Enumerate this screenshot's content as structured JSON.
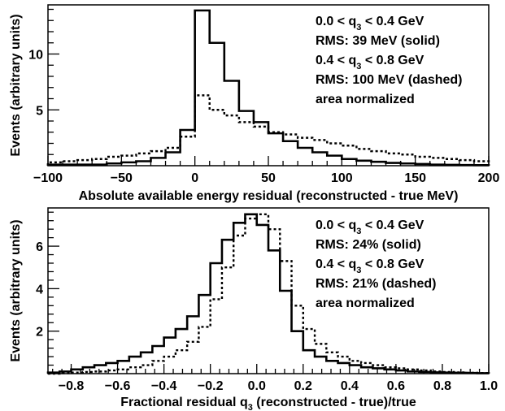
{
  "chart_data": [
    {
      "type": "histogram",
      "xlabel": "Absolute available energy residual (reconstructed - true MeV)",
      "ylabel": "Events (arbitrary units)",
      "xlim": [
        -100,
        200
      ],
      "ylim": [
        0,
        14.4
      ],
      "xticks": [
        "−100",
        "−50",
        "0",
        "50",
        "100",
        "150",
        "200"
      ],
      "xtick_values": [
        -100,
        -50,
        0,
        50,
        100,
        150,
        200
      ],
      "yticks": [
        "5",
        "10"
      ],
      "ytick_values": [
        5,
        10
      ],
      "bin_edges": [
        -100,
        -90,
        -80,
        -70,
        -60,
        -50,
        -40,
        -30,
        -20,
        -10,
        0,
        10,
        20,
        30,
        40,
        50,
        60,
        70,
        80,
        90,
        100,
        110,
        120,
        130,
        140,
        150,
        160,
        170,
        180,
        190,
        200
      ],
      "series": [
        {
          "style": "solid",
          "values": [
            0.1,
            0.1,
            0.1,
            0.1,
            0.2,
            0.3,
            0.4,
            0.7,
            1.2,
            3.2,
            13.9,
            11.0,
            7.6,
            4.9,
            3.9,
            2.9,
            2.2,
            1.6,
            1.2,
            0.9,
            0.6,
            0.45,
            0.35,
            0.25,
            0.2,
            0.15,
            0.1,
            0.08,
            0.06,
            0.05
          ]
        },
        {
          "style": "dashed",
          "values": [
            0.3,
            0.4,
            0.5,
            0.6,
            0.8,
            0.9,
            1.1,
            1.3,
            1.6,
            2.6,
            6.3,
            5.0,
            4.5,
            3.9,
            3.5,
            3.0,
            2.8,
            2.5,
            2.3,
            2.0,
            1.8,
            1.5,
            1.3,
            1.1,
            1.0,
            0.8,
            0.7,
            0.6,
            0.5,
            0.4
          ]
        }
      ],
      "legend": [
        {
          "pre": "0.0 < q",
          "sub": "3",
          "post": " < 0.4 GeV"
        },
        {
          "text": "RMS: 39 MeV (solid)"
        },
        {
          "pre": "0.4 < q",
          "sub": "3",
          "post": " < 0.8 GeV"
        },
        {
          "text": "RMS: 100 MeV (dashed)"
        },
        {
          "text": "area normalized"
        }
      ],
      "legend_placement": "top-right"
    },
    {
      "type": "histogram",
      "xlabel_pre": "Fractional residual q",
      "xlabel_sub": "3",
      "xlabel_post": " (reconstructed - true)/true",
      "ylabel": "Events (arbitrary units)",
      "xlim": [
        -0.9,
        1.0
      ],
      "ylim": [
        0,
        7.8
      ],
      "xticks": [
        "−0.8",
        "−0.6",
        "−0.4",
        "−0.2",
        "0.0",
        "0.2",
        "0.4",
        "0.6",
        "0.8",
        "1.0"
      ],
      "xtick_values": [
        -0.8,
        -0.6,
        -0.4,
        -0.2,
        0.0,
        0.2,
        0.4,
        0.6,
        0.8,
        1.0
      ],
      "yticks": [
        "2",
        "4",
        "6"
      ],
      "ytick_values": [
        2,
        4,
        6
      ],
      "bin_edges": [
        -0.9,
        -0.85,
        -0.8,
        -0.75,
        -0.7,
        -0.65,
        -0.6,
        -0.55,
        -0.5,
        -0.45,
        -0.4,
        -0.35,
        -0.3,
        -0.25,
        -0.2,
        -0.15,
        -0.1,
        -0.05,
        0.0,
        0.05,
        0.1,
        0.15,
        0.2,
        0.25,
        0.3,
        0.35,
        0.4,
        0.45,
        0.5,
        0.55,
        0.6,
        0.65,
        0.7,
        0.75,
        0.8,
        0.85,
        0.9,
        0.95,
        1.0
      ],
      "series": [
        {
          "style": "solid",
          "values": [
            0.05,
            0.1,
            0.2,
            0.3,
            0.4,
            0.5,
            0.6,
            0.8,
            1.0,
            1.3,
            1.7,
            2.1,
            2.7,
            3.7,
            5.2,
            6.3,
            7.1,
            7.5,
            7.0,
            5.8,
            3.9,
            2.0,
            1.1,
            0.8,
            0.6,
            0.5,
            0.4,
            0.3,
            0.25,
            0.2,
            0.15,
            0.1,
            0.08,
            0.06,
            0.05,
            0.04,
            0.03,
            0.02
          ]
        },
        {
          "style": "dashed",
          "values": [
            0.0,
            0.02,
            0.05,
            0.08,
            0.1,
            0.15,
            0.2,
            0.3,
            0.4,
            0.6,
            0.8,
            1.1,
            1.5,
            2.2,
            3.5,
            5.0,
            6.5,
            7.3,
            7.5,
            6.8,
            5.3,
            3.2,
            2.1,
            1.4,
            1.0,
            0.8,
            0.6,
            0.5,
            0.4,
            0.3,
            0.25,
            0.2,
            0.15,
            0.1,
            0.08,
            0.06,
            0.04,
            0.03
          ]
        }
      ],
      "legend": [
        {
          "pre": "0.0 < q",
          "sub": "3",
          "post": " < 0.4 GeV"
        },
        {
          "text": "RMS: 24% (solid)"
        },
        {
          "pre": "0.4 < q",
          "sub": "3",
          "post": " < 0.8 GeV"
        },
        {
          "text": "RMS: 21% (dashed)"
        },
        {
          "text": "area normalized"
        }
      ],
      "legend_placement": "top-right"
    }
  ]
}
